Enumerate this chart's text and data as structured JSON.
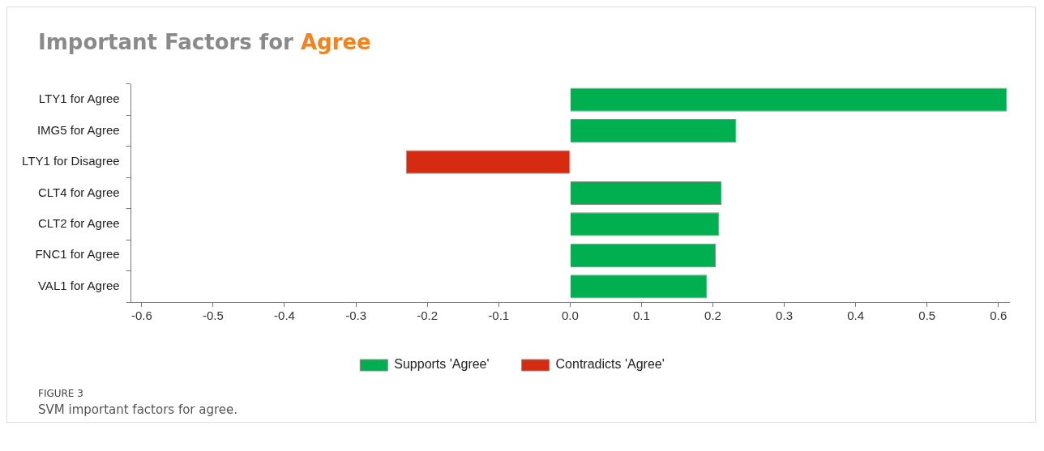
{
  "chart_data": {
    "type": "bar",
    "orientation": "horizontal",
    "title": "Important Factors for Agree",
    "categories": [
      "LTY1 for Agree",
      "IMG5 for Agree",
      "LTY1 for Disagree",
      "CLT4 for Agree",
      "CLT2 for Agree",
      "FNC1 for Agree",
      "VAL1 for Agree"
    ],
    "series": [
      {
        "name": "Supports 'Agree'",
        "color": "#00b050",
        "values": [
          0.612,
          0.233,
          null,
          0.212,
          0.209,
          0.204,
          0.192
        ]
      },
      {
        "name": "Contradicts 'Agree'",
        "color": "#d62a12",
        "values": [
          null,
          null,
          -0.23,
          null,
          null,
          null,
          null
        ]
      }
    ],
    "xlim": [
      -0.615,
      0.615
    ],
    "xticks": [
      -0.6,
      -0.5,
      -0.4,
      -0.3,
      -0.2,
      -0.1,
      {
        "value": 0,
        "label": "0.0"
      },
      0.1,
      0.2,
      0.3,
      0.4,
      0.5,
      0.6
    ],
    "grid": false,
    "legend": "bottom",
    "annotations": [
      "FIGURE 3",
      "SVM important factors for agree."
    ]
  }
}
